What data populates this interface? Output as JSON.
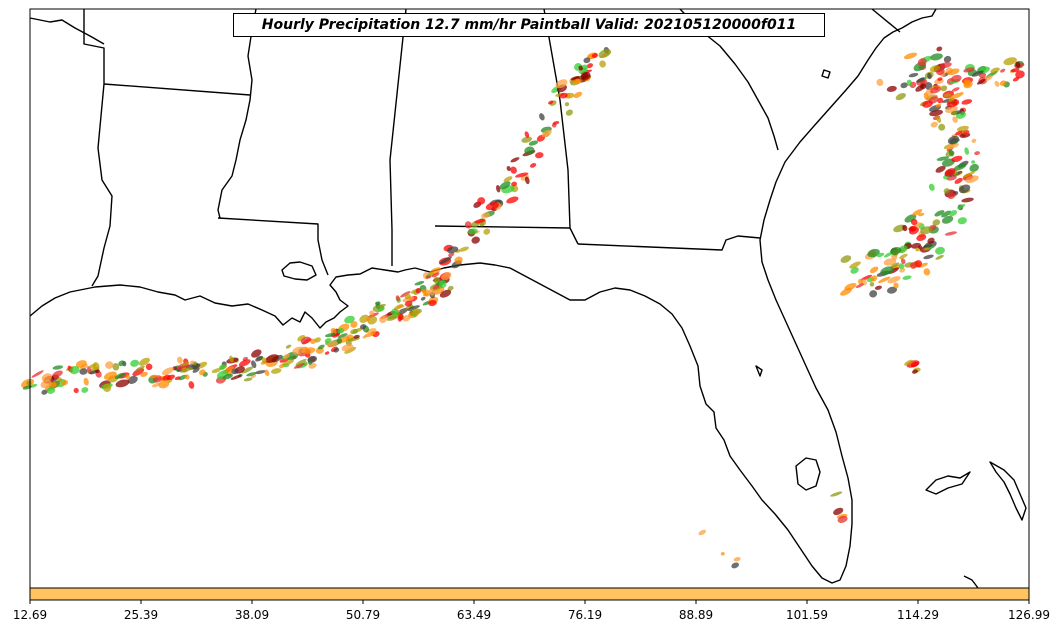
{
  "title": "Hourly Precipitation 12.7 mm/hr Paintball Valid: 202105120000f011",
  "colorbar": {
    "color": "#ffc460",
    "ticks": [
      "12.69",
      "25.39",
      "38.09",
      "50.79",
      "63.49",
      "76.19",
      "88.89",
      "101.59",
      "114.29",
      "126.99"
    ]
  },
  "colors": {
    "land_border": "#000000",
    "background": "#ffffff",
    "paintball": [
      "#ff8c00",
      "#ff0000",
      "#e83030",
      "#228b22",
      "#32cd32",
      "#8b0000",
      "#b8a000",
      "#ffa040",
      "#404040",
      "#8f9a10"
    ]
  }
}
